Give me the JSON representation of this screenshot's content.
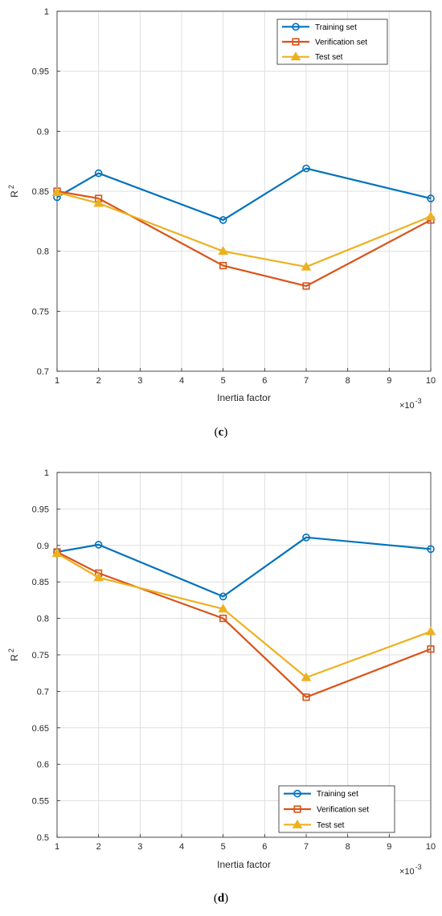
{
  "chart_data": [
    {
      "type": "line",
      "panel_label": "(c)",
      "panel_letter": "c",
      "x": [
        1,
        2,
        5,
        7,
        10
      ],
      "xlabel": "Inertia factor",
      "ylabel": "R",
      "ylabel_superscript": "2",
      "x_exponent_base": "×10",
      "x_exponent_power": "-3",
      "xlim": [
        1,
        10
      ],
      "ylim": [
        0.7,
        1.0
      ],
      "xticks": [
        "1",
        "2",
        "3",
        "4",
        "5",
        "6",
        "7",
        "8",
        "9",
        "10"
      ],
      "yticks": [
        "0.7",
        "0.75",
        "0.8",
        "0.85",
        "0.9",
        "0.95",
        "1"
      ],
      "grid": true,
      "legend_position": "top-right",
      "series": [
        {
          "name": "Training set",
          "marker": "circle",
          "color": "#0072BD",
          "values": [
            0.845,
            0.865,
            0.826,
            0.869,
            0.844
          ]
        },
        {
          "name": "Verification set",
          "marker": "square",
          "color": "#D95319",
          "values": [
            0.85,
            0.844,
            0.788,
            0.771,
            0.826
          ]
        },
        {
          "name": "Test set",
          "marker": "triangle",
          "color": "#EDB120",
          "values": [
            0.849,
            0.84,
            0.8,
            0.787,
            0.829
          ]
        }
      ]
    },
    {
      "type": "line",
      "panel_label": "(d)",
      "panel_letter": "d",
      "x": [
        1,
        2,
        5,
        7,
        10
      ],
      "xlabel": "Inertia factor",
      "ylabel": "R",
      "ylabel_superscript": "2",
      "x_exponent_base": "×10",
      "x_exponent_power": "-3",
      "xlim": [
        1,
        10
      ],
      "ylim": [
        0.5,
        1.0
      ],
      "xticks": [
        "1",
        "2",
        "3",
        "4",
        "5",
        "6",
        "7",
        "8",
        "9",
        "10"
      ],
      "yticks": [
        "0.5",
        "0.55",
        "0.6",
        "0.65",
        "0.7",
        "0.75",
        "0.8",
        "0.85",
        "0.9",
        "0.95",
        "1"
      ],
      "grid": true,
      "legend_position": "bottom-right",
      "series": [
        {
          "name": "Training set",
          "marker": "circle",
          "color": "#0072BD",
          "values": [
            0.891,
            0.901,
            0.83,
            0.911,
            0.895
          ]
        },
        {
          "name": "Verification set",
          "marker": "square",
          "color": "#D95319",
          "values": [
            0.891,
            0.862,
            0.8,
            0.692,
            0.758
          ]
        },
        {
          "name": "Test set",
          "marker": "triangle",
          "color": "#EDB120",
          "values": [
            0.889,
            0.856,
            0.813,
            0.719,
            0.782
          ]
        }
      ]
    }
  ]
}
